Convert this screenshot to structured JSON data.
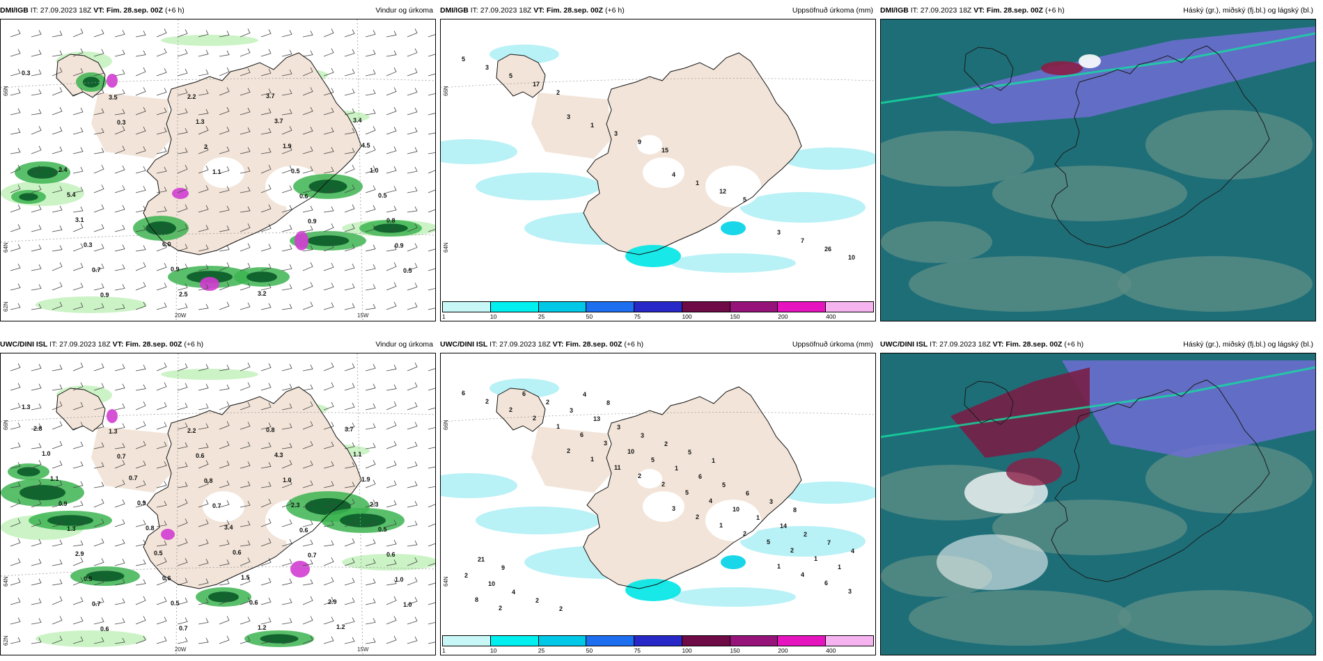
{
  "panels": [
    {
      "model": "DMI/IGB",
      "it": " IT: 27.09.2023 18Z ",
      "vt": "VT: Fim. 28.sep. 00Z",
      "offset": " (+6 h)",
      "title": "Vindur og úrkoma",
      "labels": [
        "0.3",
        "0.3",
        "1.1",
        "0.9",
        "0.5",
        "3.5",
        "2",
        "0.6",
        "0.9",
        "0.9",
        "1.3",
        "0.5",
        "0.8",
        "0.7",
        "2.2",
        "1.9",
        "0.5",
        "0.3",
        "2.5",
        "3.7",
        "1.0",
        "3.1",
        "0.9",
        "3.7",
        "4.5",
        "5.4",
        "6.0",
        "3.2",
        "3.4",
        "2.4"
      ],
      "axes": {
        "lat1": "66N",
        "lat2": "64N",
        "lat3": "62N",
        "lon1": "20W",
        "lon2": "15W"
      }
    },
    {
      "model": "DMI/IGB",
      "it": " IT: 27.09.2023 18Z ",
      "vt": "VT: Fim. 28.sep. 00Z",
      "offset": " (+6 h)",
      "title": "Uppsöfnuð úrkoma (mm)",
      "labels": [
        "5",
        "3",
        "4",
        "3",
        "3",
        "1",
        "1",
        "7",
        "5",
        "3",
        "12",
        "26",
        "17",
        "9",
        "5",
        "10",
        "2",
        "15"
      ],
      "axes": {
        "lat1": "66N",
        "lat2": "64N"
      }
    },
    {
      "model": "DMI/IGB",
      "it": " IT: 27.09.2023 18Z ",
      "vt": "VT: Fim. 28.sep. 00Z",
      "offset": " (+6 h)",
      "title": "Háský (gr.), miðský (fj.bl.) og lágský (bl.)"
    },
    {
      "model": "UWC/DINI ISL",
      "it": " IT: 27.09.2023 18Z ",
      "vt": "VT: Fim. 28.sep. 00Z",
      "offset": " (+6 h)",
      "title": "Vindur og úrkoma",
      "labels": [
        "1.3",
        "0.7",
        "0.7",
        "0.7",
        "1.0",
        "1.3",
        "0.8",
        "0.6",
        "1.0",
        "0.6",
        "0.6",
        "2.3",
        "0.6",
        "0.7",
        "2.2",
        "1.0",
        "0.5",
        "0.5",
        "0.7",
        "4.3",
        "2.3",
        "2.9",
        "0.5",
        "0.8",
        "1.9",
        "1.3",
        "0.6",
        "1.2",
        "1.1",
        "0.9",
        "0.5",
        "0.6",
        "3.7",
        "1.1",
        "0.8",
        "1.5",
        "1.2",
        "1.0",
        "0.9",
        "0.6",
        "2.9",
        "2.8",
        "0.7",
        "3.4"
      ],
      "axes": {
        "lat1": "66N",
        "lat2": "64N",
        "lat3": "62N",
        "lon1": "20W",
        "lon2": "15W"
      }
    },
    {
      "model": "UWC/DINI ISL",
      "it": " IT: 27.09.2023 18Z ",
      "vt": "VT: Fim. 28.sep. 00Z",
      "offset": " (+6 h)",
      "title": "Uppsöfnuð úrkoma (mm)",
      "labels": [
        "6",
        "2",
        "3",
        "1",
        "2",
        "1",
        "2",
        "4",
        "2",
        "11",
        "1",
        "6",
        "2",
        "2",
        "2",
        "3",
        "1",
        "2",
        "5",
        "8",
        "6",
        "5",
        "2",
        "2",
        "3",
        "4",
        "1",
        "6",
        "10",
        "10",
        "1",
        "2",
        "5",
        "1",
        "2",
        "3",
        "1",
        "14",
        "10",
        "13",
        "6",
        "2",
        "4",
        "3",
        "5",
        "7",
        "2",
        "3",
        "6",
        "4",
        "2",
        "2",
        "3",
        "21",
        "4",
        "5",
        "8",
        "9",
        "8",
        "1"
      ],
      "axes": {
        "lat1": "66N",
        "lat2": "64N"
      }
    },
    {
      "model": "UWC/DINI ISL",
      "it": " IT: 27.09.2023 18Z ",
      "vt": "VT: Fim. 28.sep. 00Z",
      "offset": " (+6 h)",
      "title": "Háský (gr.), miðský (fj.bl.) og lágský (bl.)"
    }
  ],
  "colorbar": {
    "ticks": [
      "1",
      "10",
      "25",
      "50",
      "75",
      "100",
      "150",
      "200",
      "400"
    ],
    "colors": [
      "#c8f7f7",
      "#00f0f0",
      "#00c8e6",
      "#1e6ef0",
      "#2828c8",
      "#6e0a46",
      "#96147a",
      "#e614be",
      "#f5b4f0"
    ]
  },
  "colors": {
    "land": "#f2e4d8",
    "light_green": "#c6f2c0",
    "mid_green": "#3cb450",
    "dark_green": "#0a5a28",
    "cyan_light": "#b4f0f5",
    "cloud_teal": "#1e6e78",
    "cloud_gray": "#5a8c84",
    "cloud_purple": "#6e6ed2"
  }
}
